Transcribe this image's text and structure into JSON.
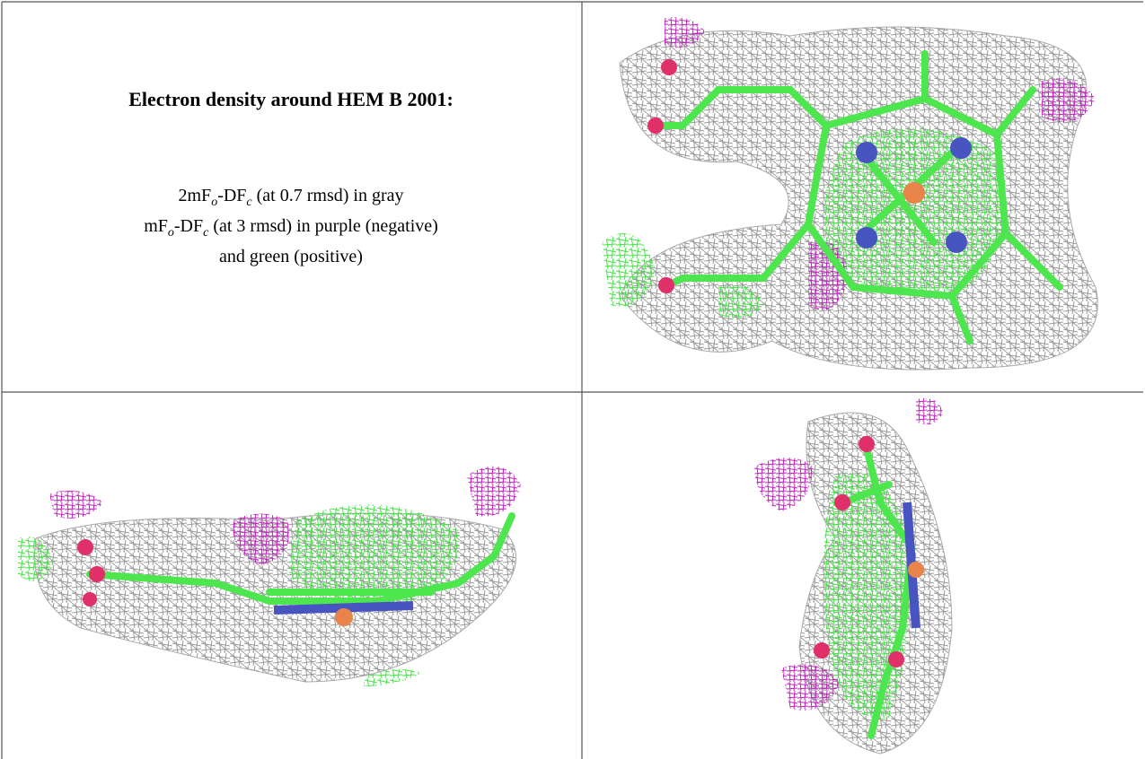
{
  "title": "Electron density around HEM B 2001:",
  "legend": [
    [
      {
        "text": "2mF"
      },
      {
        "sub": "o"
      },
      {
        "text": "-DF"
      },
      {
        "sub": "c"
      },
      {
        "text": " (at 0.7 rmsd) in gray"
      }
    ],
    [
      {
        "text": "mF"
      },
      {
        "sub": "o"
      },
      {
        "text": "-DF"
      },
      {
        "sub": "c"
      },
      {
        "text": " (at 3 rmsd) in purple (negative)"
      }
    ],
    [
      {
        "text": "and green (positive)"
      }
    ]
  ]
}
